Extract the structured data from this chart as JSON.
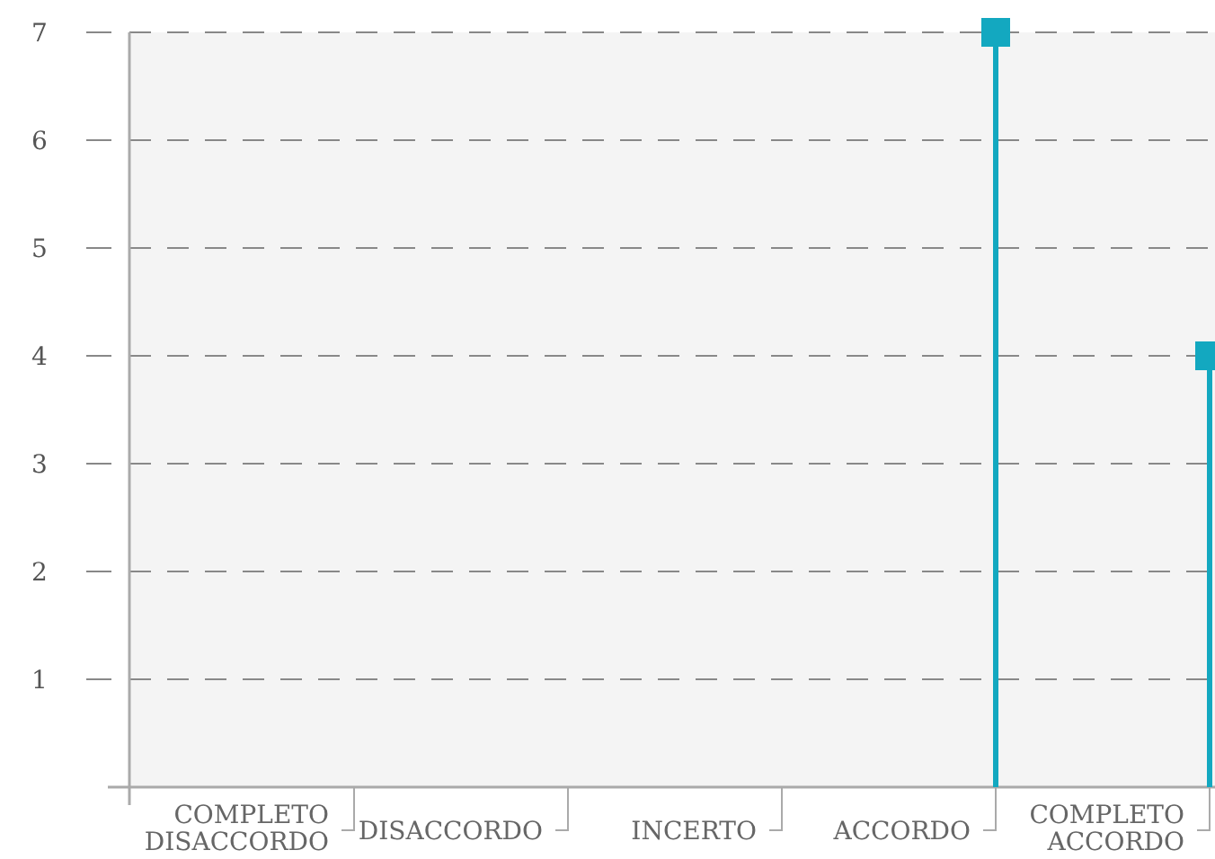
{
  "chart_data": {
    "type": "lollipop",
    "categories": [
      "COMPLETO DISACCORDO",
      "DISACCORDO",
      "INCERTO",
      "ACCORDO",
      "COMPLETO ACCORDO"
    ],
    "series": [
      {
        "color": "#13a8c0",
        "values": [
          null,
          null,
          null,
          7,
          4
        ]
      }
    ],
    "ylim": [
      0,
      7
    ],
    "yticks": [
      1,
      2,
      3,
      4,
      5,
      6,
      7
    ],
    "grid": "y",
    "marker": "square"
  }
}
